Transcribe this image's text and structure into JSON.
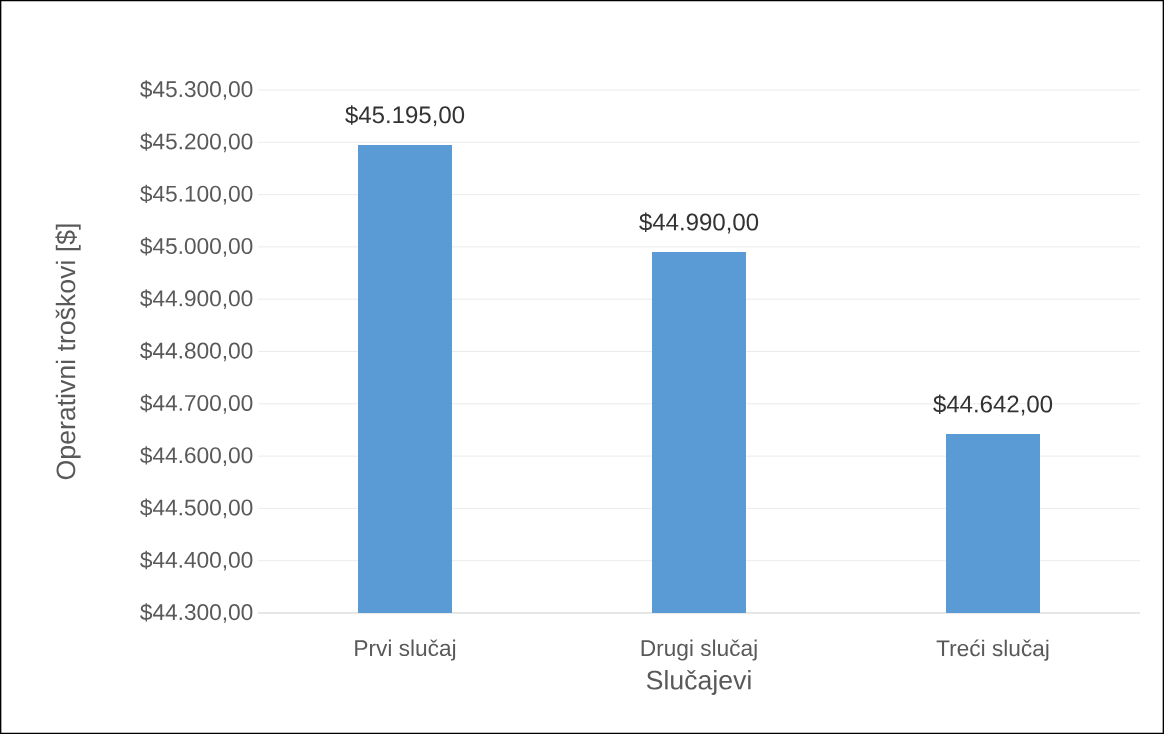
{
  "chart_data": {
    "type": "bar",
    "xlabel": "Slučajevi",
    "ylabel": "Operativni troškovi  [$]",
    "categories": [
      "Prvi slučaj",
      "Drugi slučaj",
      "Treći slučaj"
    ],
    "values": [
      45195,
      44990,
      44642
    ],
    "value_labels": [
      "$45.195,00",
      "$44.990,00",
      "$44.642,00"
    ],
    "color": "#5b9bd5",
    "ylim": [
      44300,
      45300
    ],
    "yticks": [
      {
        "value": 44300,
        "label": "$44.300,00"
      },
      {
        "value": 44400,
        "label": "$44.400,00"
      },
      {
        "value": 44500,
        "label": "$44.500,00"
      },
      {
        "value": 44600,
        "label": "$44.600,00"
      },
      {
        "value": 44700,
        "label": "$44.700,00"
      },
      {
        "value": 44800,
        "label": "$44.800,00"
      },
      {
        "value": 44900,
        "label": "$44.900,00"
      },
      {
        "value": 45000,
        "label": "$45.000,00"
      },
      {
        "value": 45100,
        "label": "$45.100,00"
      },
      {
        "value": 45200,
        "label": "$45.200,00"
      },
      {
        "value": 45300,
        "label": "$45.300,00"
      }
    ],
    "grid": "y"
  }
}
